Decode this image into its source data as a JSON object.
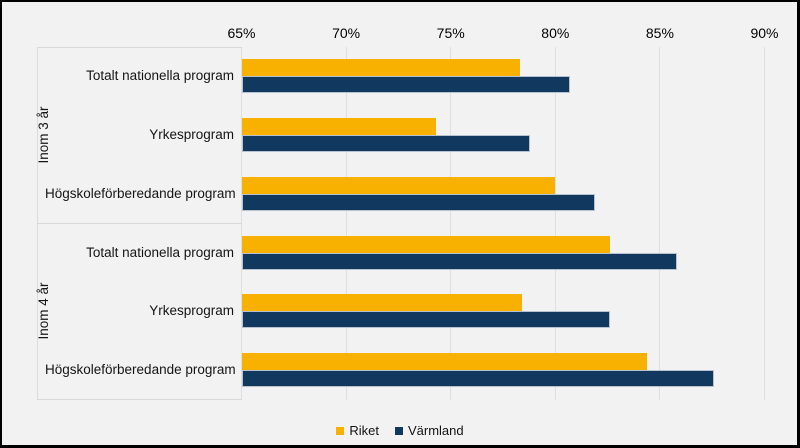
{
  "figure": {
    "background": "#f2f2f2",
    "frame_color": "#000000",
    "gridline_color": "#dfdfdf",
    "separator_color": "#d8d8d8"
  },
  "chart_data": {
    "type": "bar",
    "orientation": "horizontal",
    "grid": true,
    "legend_position": "bottom",
    "x_axis": {
      "position": "top",
      "min": 65,
      "max": 90,
      "unit": "%",
      "ticks": [
        {
          "value": 65,
          "label": "65%"
        },
        {
          "value": 70,
          "label": "70%"
        },
        {
          "value": 75,
          "label": "75%"
        },
        {
          "value": 80,
          "label": "80%"
        },
        {
          "value": 85,
          "label": "85%"
        },
        {
          "value": 90,
          "label": "90%"
        }
      ]
    },
    "groups": [
      {
        "label": "Inom 3 år",
        "categories": [
          "Totalt nationella program",
          "Yrkesprogram",
          "Högskoleförberedande program"
        ]
      },
      {
        "label": "Inom 4 år",
        "categories": [
          "Totalt nationella program",
          "Yrkesprogram",
          "Högskoleförberedande program"
        ]
      }
    ],
    "series": [
      {
        "name": "Riket",
        "color": "#F8B001",
        "values": [
          78.3,
          74.3,
          80.0,
          82.6,
          78.4,
          84.4
        ]
      },
      {
        "name": "Värmland",
        "color": "#11395F",
        "values": [
          80.7,
          78.8,
          81.9,
          85.8,
          82.6,
          87.6
        ]
      }
    ]
  }
}
